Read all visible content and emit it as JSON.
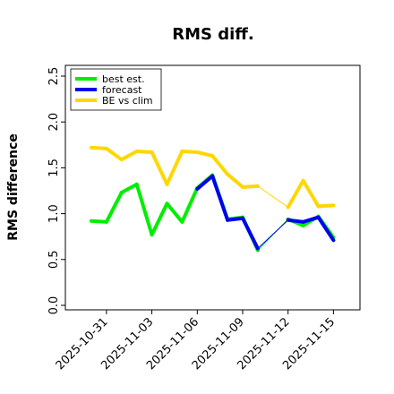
{
  "chart_data": {
    "type": "line",
    "title": "RMS diff.",
    "xlabel": "",
    "ylabel": "RMS difference",
    "ylim": [
      0.0,
      2.5
    ],
    "yticks": [
      "0.0",
      "0.5",
      "1.0",
      "1.5",
      "2.0",
      "2.5"
    ],
    "xticks": [
      {
        "label": "2025-10-31",
        "color": "#000000"
      },
      {
        "label": "2025-11-03",
        "color": "#000000"
      },
      {
        "label": "2025-11-06",
        "color": "#228b22"
      },
      {
        "label": "2025-11-09",
        "color": "#000000"
      },
      {
        "label": "2025-11-12",
        "color": "#000000"
      },
      {
        "label": "2025-11-15",
        "color": "#000000"
      }
    ],
    "x": [
      "2025-10-30",
      "2025-10-31",
      "2025-11-01",
      "2025-11-02",
      "2025-11-03",
      "2025-11-04",
      "2025-11-05",
      "2025-11-06",
      "2025-11-07",
      "2025-11-08",
      "2025-11-09",
      "2025-11-10",
      "2025-11-11",
      "2025-11-12",
      "2025-11-13",
      "2025-11-14",
      "2025-11-15"
    ],
    "series": [
      {
        "name": "best est.",
        "color": "#00ee00",
        "values": [
          0.92,
          0.91,
          1.23,
          1.32,
          0.77,
          1.11,
          0.91,
          1.28,
          1.42,
          0.94,
          0.96,
          0.6,
          null,
          0.94,
          0.87,
          0.97,
          0.74
        ]
      },
      {
        "name": "forecast",
        "color": "#0000ee",
        "values": [
          null,
          null,
          null,
          null,
          null,
          null,
          null,
          1.27,
          1.41,
          0.93,
          0.95,
          0.62,
          null,
          0.93,
          0.91,
          0.96,
          0.71
        ]
      },
      {
        "name": "BE vs clim",
        "color": "#ffd700",
        "values": [
          1.72,
          1.71,
          1.59,
          1.68,
          1.67,
          1.32,
          1.68,
          1.67,
          1.63,
          1.43,
          1.29,
          1.3,
          null,
          1.07,
          1.36,
          1.08,
          1.09
        ]
      }
    ],
    "legend_position": "top-left",
    "grid": false
  }
}
